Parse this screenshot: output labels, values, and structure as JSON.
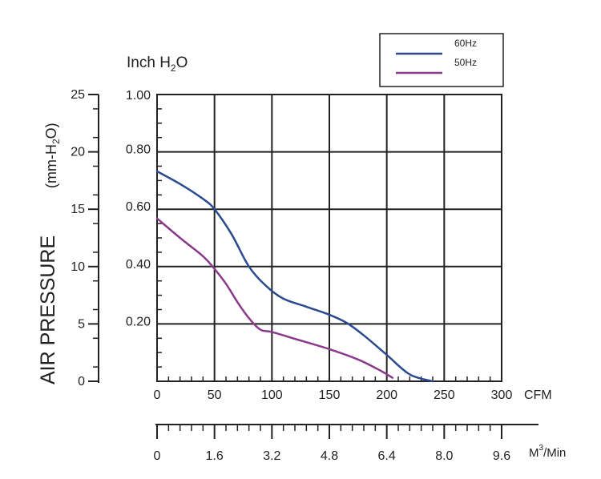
{
  "chart_data": {
    "type": "line",
    "title": "",
    "left_axis": {
      "ylabel": "AIR PRESSURE",
      "unit_label": "(mm-H",
      "unit_sub": "2",
      "unit_end": "O)",
      "ticks": [
        "0",
        "5",
        "10",
        "15",
        "20",
        "25"
      ],
      "ylim": [
        0,
        25
      ]
    },
    "inner_axis": {
      "unit_label": "Inch H",
      "unit_sub": "2",
      "unit_end": "O",
      "ticks": [
        "0.20",
        "0.40",
        "0.60",
        "0.80",
        "1.00"
      ],
      "ylim": [
        0,
        1.0
      ]
    },
    "x_axis_cfm": {
      "label": "CFM",
      "ticks": [
        "0",
        "50",
        "100",
        "150",
        "200",
        "250",
        "300"
      ],
      "xlim": [
        0,
        300
      ]
    },
    "x_axis_m3": {
      "label": "M",
      "label_sup": "3",
      "label_end": "/Min",
      "ticks": [
        "0",
        "1.6",
        "3.2",
        "4.8",
        "6.4",
        "8.0",
        "9.6"
      ]
    },
    "legend_position": "top-right",
    "grid": true,
    "series": [
      {
        "name": "60Hz",
        "color": "#2b4a8e",
        "x": [
          0,
          20,
          40,
          50,
          65,
          80,
          95,
          110,
          130,
          150,
          165,
          180,
          200,
          220,
          240
        ],
        "y": [
          18.3,
          17.2,
          15.9,
          15.0,
          12.8,
          10.0,
          8.3,
          7.2,
          6.5,
          5.8,
          5.1,
          4.0,
          2.3,
          0.6,
          0.0
        ]
      },
      {
        "name": "50Hz",
        "color": "#8a3a8a",
        "x": [
          0,
          20,
          40,
          50,
          60,
          70,
          80,
          90,
          100,
          120,
          150,
          175,
          195,
          205
        ],
        "y": [
          14.2,
          12.5,
          10.9,
          9.8,
          8.5,
          6.9,
          5.5,
          4.5,
          4.3,
          3.7,
          2.8,
          1.9,
          0.9,
          0.3
        ]
      }
    ]
  }
}
